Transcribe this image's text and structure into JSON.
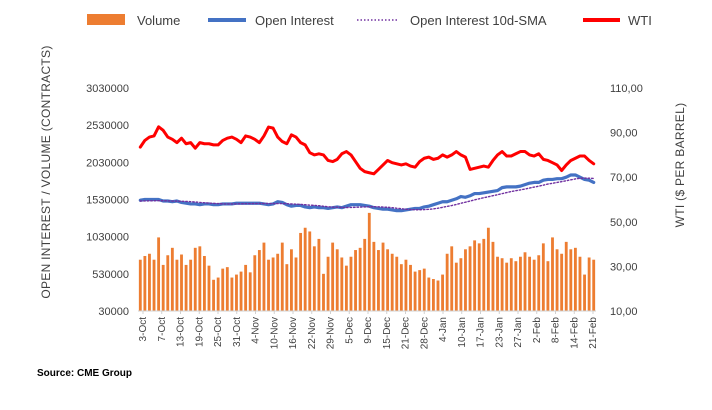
{
  "chart_data": {
    "type": "bar+line",
    "legend_position": "top",
    "grid": false,
    "source": "Source: CME Group",
    "y_left": {
      "label": "OPEN INTEREST / VOLUME (CONTRACTS)",
      "range": [
        30000,
        3030000
      ],
      "ticks": [
        "30000",
        "530000",
        "1030000",
        "1530000",
        "2030000",
        "2530000",
        "3030000"
      ]
    },
    "y_right": {
      "label": "WTI ($ PER BARREL)",
      "range": [
        10,
        110
      ],
      "ticks": [
        "10,00",
        "30,00",
        "50,00",
        "70,00",
        "90,00",
        "110,00"
      ]
    },
    "x_tick_labels": [
      "3-Oct",
      "7-Oct",
      "13-Oct",
      "19-Oct",
      "25-Oct",
      "31-Oct",
      "4-Nov",
      "10-Nov",
      "16-Nov",
      "22-Nov",
      "29-Nov",
      "5-Dec",
      "9-Dec",
      "15-Dec",
      "21-Dec",
      "28-Dec",
      "4-Jan",
      "10-Jan",
      "17-Jan",
      "23-Jan",
      "27-Jan",
      "2-Feb",
      "8-Feb",
      "14-Feb",
      "21-Feb"
    ],
    "series": [
      {
        "name": "Volume",
        "kind": "bar",
        "axis": "left",
        "color": "#ED7D31",
        "values": [
          720000,
          770000,
          800000,
          720000,
          1020000,
          650000,
          780000,
          880000,
          720000,
          790000,
          650000,
          720000,
          880000,
          900000,
          770000,
          640000,
          450000,
          480000,
          600000,
          620000,
          480000,
          520000,
          560000,
          650000,
          550000,
          780000,
          850000,
          950000,
          720000,
          750000,
          800000,
          950000,
          660000,
          860000,
          750000,
          1080000,
          1150000,
          1100000,
          900000,
          1000000,
          530000,
          760000,
          950000,
          860000,
          750000,
          640000,
          760000,
          850000,
          880000,
          1000000,
          1350000,
          960000,
          850000,
          950000,
          860000,
          800000,
          760000,
          660000,
          720000,
          650000,
          560000,
          580000,
          600000,
          480000,
          460000,
          440000,
          520000,
          800000,
          900000,
          680000,
          740000,
          860000,
          900000,
          980000,
          940000,
          1000000,
          1150000,
          960000,
          760000,
          740000,
          680000,
          740000,
          700000,
          760000,
          820000,
          760000,
          720000,
          780000,
          940000,
          700000,
          1020000,
          860000,
          800000,
          960000,
          860000,
          880000,
          760000,
          520000,
          750000,
          720000
        ]
      },
      {
        "name": "Open Interest",
        "kind": "line",
        "axis": "left",
        "color": "#4472C4",
        "values": [
          1520000,
          1530000,
          1530000,
          1530000,
          1530000,
          1510000,
          1510000,
          1500000,
          1510000,
          1490000,
          1480000,
          1470000,
          1470000,
          1460000,
          1470000,
          1470000,
          1460000,
          1460000,
          1470000,
          1470000,
          1470000,
          1480000,
          1480000,
          1480000,
          1480000,
          1480000,
          1480000,
          1470000,
          1460000,
          1470000,
          1500000,
          1490000,
          1460000,
          1440000,
          1450000,
          1450000,
          1430000,
          1420000,
          1430000,
          1420000,
          1420000,
          1410000,
          1420000,
          1430000,
          1420000,
          1440000,
          1460000,
          1460000,
          1460000,
          1450000,
          1440000,
          1420000,
          1410000,
          1400000,
          1400000,
          1390000,
          1380000,
          1380000,
          1390000,
          1400000,
          1410000,
          1410000,
          1430000,
          1440000,
          1460000,
          1480000,
          1500000,
          1500000,
          1520000,
          1540000,
          1570000,
          1560000,
          1580000,
          1610000,
          1610000,
          1620000,
          1630000,
          1640000,
          1650000,
          1690000,
          1700000,
          1700000,
          1700000,
          1710000,
          1730000,
          1750000,
          1760000,
          1760000,
          1790000,
          1800000,
          1800000,
          1810000,
          1810000,
          1830000,
          1860000,
          1860000,
          1830000,
          1800000,
          1790000,
          1760000
        ]
      },
      {
        "name": "Open Interest 10d-SMA",
        "kind": "line-dotted",
        "axis": "left",
        "color": "#7030A0",
        "values": [
          1510000,
          1511000,
          1512000,
          1513000,
          1514000,
          1513000,
          1511000,
          1509000,
          1508000,
          1506000,
          1504000,
          1501000,
          1496000,
          1491000,
          1486000,
          1481000,
          1478000,
          1475000,
          1471000,
          1471000,
          1471000,
          1471000,
          1472000,
          1474000,
          1474000,
          1475000,
          1476000,
          1476000,
          1476000,
          1475000,
          1475000,
          1476000,
          1474000,
          1470000,
          1467000,
          1464000,
          1460000,
          1454000,
          1451000,
          1446000,
          1439000,
          1432000,
          1427000,
          1426000,
          1423000,
          1422000,
          1423000,
          1425000,
          1428000,
          1430000,
          1432000,
          1433000,
          1431000,
          1428000,
          1425000,
          1420000,
          1412000,
          1406000,
          1399000,
          1395000,
          1392000,
          1392000,
          1394000,
          1398000,
          1404000,
          1413000,
          1425000,
          1437000,
          1449000,
          1463000,
          1479000,
          1494000,
          1509000,
          1525000,
          1540000,
          1554000,
          1567000,
          1581000,
          1594000,
          1609000,
          1623000,
          1637000,
          1649000,
          1659000,
          1671000,
          1684000,
          1697000,
          1709000,
          1723000,
          1738000,
          1748000,
          1759000,
          1770000,
          1782000,
          1795000,
          1807000,
          1815000,
          1818000,
          1817000,
          1813000
        ]
      },
      {
        "name": "WTI",
        "kind": "line",
        "axis": "right",
        "color": "#FF0000",
        "values": [
          83.5,
          86.5,
          88.0,
          88.5,
          92.6,
          91.0,
          88.0,
          87.0,
          85.5,
          87.5,
          85.0,
          85.5,
          83.0,
          85.5,
          85.0,
          85.0,
          84.5,
          84.5,
          86.5,
          87.5,
          88.0,
          87.0,
          85.5,
          88.5,
          88.0,
          87.0,
          85.5,
          88.5,
          92.5,
          92.0,
          88.0,
          86.0,
          85.0,
          89.0,
          88.0,
          85.5,
          84.5,
          81.0,
          80.0,
          80.5,
          80.0,
          77.5,
          77.0,
          78.0,
          80.5,
          81.5,
          80.0,
          77.0,
          74.0,
          72.5,
          72.0,
          71.5,
          73.5,
          75.5,
          77.5,
          76.5,
          76.0,
          75.5,
          76.0,
          75.0,
          74.5,
          77.0,
          78.5,
          79.0,
          78.0,
          78.5,
          80.0,
          79.0,
          80.0,
          81.5,
          80.0,
          79.0,
          73.5,
          74.0,
          74.5,
          75.0,
          74.5,
          77.5,
          80.0,
          81.5,
          79.5,
          79.5,
          80.5,
          81.5,
          81.5,
          80.0,
          79.5,
          80.5,
          78.0,
          77.5,
          76.5,
          75.5,
          73.0,
          75.5,
          77.5,
          78.5,
          79.5,
          79.5,
          77.5,
          76.0
        ]
      }
    ]
  }
}
